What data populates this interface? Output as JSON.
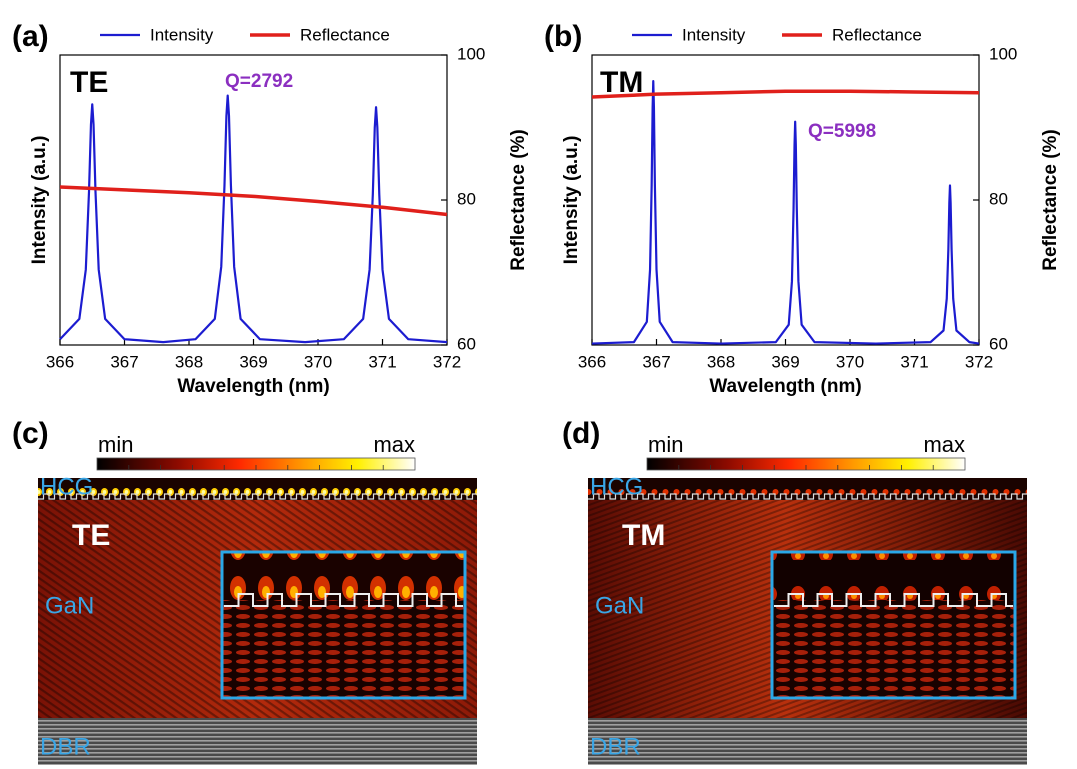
{
  "chart_data": [
    {
      "type": "line",
      "panel_label": "(a)",
      "xlabel": "Wavelength (nm)",
      "ylabel": "Intensity (a.u.)",
      "y2label": "Reflectance (%)",
      "annotations": [
        "TE",
        "Q=2792"
      ],
      "xlim": [
        366,
        372
      ],
      "xticks": [
        366,
        367,
        368,
        369,
        370,
        371,
        372
      ],
      "ylim": [
        0,
        1
      ],
      "y2lim": [
        60,
        100
      ],
      "y2ticks": [
        60,
        80,
        100
      ],
      "series": [
        {
          "name": "Intensity",
          "color": "#1c1cd0",
          "x": [
            366,
            366.3,
            366.4,
            366.45,
            366.48,
            366.5,
            366.52,
            366.55,
            366.6,
            366.7,
            367,
            367.6,
            368.1,
            368.4,
            368.5,
            368.55,
            368.58,
            368.6,
            368.62,
            368.65,
            368.7,
            368.8,
            369.1,
            369.8,
            370.4,
            370.7,
            370.8,
            370.85,
            370.88,
            370.9,
            370.92,
            370.95,
            371,
            371.1,
            371.4,
            372
          ],
          "values": [
            0.02,
            0.09,
            0.26,
            0.53,
            0.76,
            0.83,
            0.76,
            0.53,
            0.26,
            0.09,
            0.02,
            0.01,
            0.02,
            0.09,
            0.27,
            0.55,
            0.79,
            0.86,
            0.79,
            0.55,
            0.27,
            0.09,
            0.02,
            0.01,
            0.02,
            0.09,
            0.26,
            0.52,
            0.75,
            0.82,
            0.75,
            0.52,
            0.26,
            0.09,
            0.02,
            0.01
          ]
        },
        {
          "name": "Reflectance",
          "color": "#e0201b",
          "axis": "y2",
          "x": [
            366,
            367,
            368,
            369,
            370,
            371,
            372
          ],
          "values": [
            81.8,
            81.4,
            81.0,
            80.5,
            79.8,
            79.0,
            78.0
          ]
        }
      ]
    },
    {
      "type": "line",
      "panel_label": "(b)",
      "xlabel": "Wavelength (nm)",
      "ylabel": "Intensity (a.u.)",
      "y2label": "Reflectance (%)",
      "annotations": [
        "TM",
        "Q=5998"
      ],
      "xlim": [
        366,
        372
      ],
      "xticks": [
        366,
        367,
        368,
        369,
        370,
        371,
        372
      ],
      "ylim": [
        0,
        1
      ],
      "y2lim": [
        60,
        100
      ],
      "y2ticks": [
        60,
        80,
        100
      ],
      "series": [
        {
          "name": "Intensity",
          "color": "#1c1cd0",
          "x": [
            366,
            366.65,
            366.85,
            366.9,
            366.925,
            366.94,
            366.95,
            366.96,
            366.975,
            367,
            367.05,
            367.25,
            368,
            368.85,
            369.05,
            369.1,
            369.125,
            369.14,
            369.15,
            369.16,
            369.175,
            369.2,
            369.25,
            369.45,
            370.4,
            371.25,
            371.45,
            371.5,
            371.525,
            371.54,
            371.55,
            371.56,
            371.575,
            371.6,
            371.65,
            371.85,
            372
          ],
          "values": [
            0.005,
            0.01,
            0.08,
            0.26,
            0.55,
            0.82,
            0.91,
            0.82,
            0.55,
            0.26,
            0.08,
            0.01,
            0.005,
            0.01,
            0.07,
            0.22,
            0.47,
            0.69,
            0.77,
            0.69,
            0.47,
            0.22,
            0.07,
            0.01,
            0.005,
            0.01,
            0.05,
            0.16,
            0.33,
            0.49,
            0.55,
            0.49,
            0.33,
            0.16,
            0.05,
            0.01,
            0.005
          ]
        },
        {
          "name": "Reflectance",
          "color": "#e0201b",
          "axis": "y2",
          "x": [
            366,
            367,
            368,
            369,
            370,
            371,
            372
          ],
          "values": [
            94.2,
            94.6,
            94.8,
            95.0,
            95.0,
            94.9,
            94.8
          ]
        }
      ]
    }
  ],
  "field_maps": [
    {
      "panel_label": "(c)",
      "colorbar_min": "min",
      "colorbar_max": "max",
      "mode": "TE",
      "regions": [
        "HCG",
        "GaN",
        "DBR"
      ]
    },
    {
      "panel_label": "(d)",
      "colorbar_min": "min",
      "colorbar_max": "max",
      "mode": "TM",
      "regions": [
        "HCG",
        "GaN",
        "DBR"
      ]
    }
  ]
}
